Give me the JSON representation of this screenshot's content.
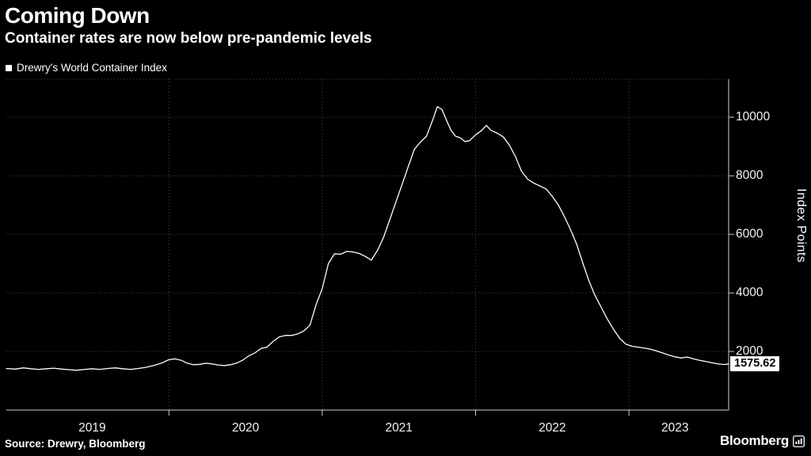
{
  "header": {
    "title": "Coming Down",
    "subtitle": "Container rates are now below pre-pandemic levels"
  },
  "legend": {
    "label": "Drewry's World Container Index"
  },
  "footer": {
    "source": "Source: Drewry, Bloomberg",
    "brand": "Bloomberg"
  },
  "colors": {
    "background": "#000000",
    "line": "#ffffff",
    "grid": "#474747",
    "axis": "#cfcfcf",
    "text": "#ffffff",
    "flag_bg": "#ffffff",
    "flag_text": "#000000"
  },
  "chart_data": {
    "type": "line",
    "title": "Coming Down",
    "subtitle": "Container rates are now below pre-pandemic levels",
    "series_name": "Drewry's World Container Index",
    "xlabel": "",
    "ylabel": "Index Points",
    "xlim": [
      2018.94,
      2023.65
    ],
    "ylim": [
      0,
      11300
    ],
    "yticks": [
      2000,
      4000,
      6000,
      8000,
      10000
    ],
    "x_gridlines": [
      2020,
      2021,
      2022,
      2023
    ],
    "year_labels": [
      {
        "label": "2019",
        "x": 2019.5
      },
      {
        "label": "2020",
        "x": 2020.5
      },
      {
        "label": "2021",
        "x": 2021.5
      },
      {
        "label": "2022",
        "x": 2022.5
      },
      {
        "label": "2023",
        "x": 2023.3
      }
    ],
    "legend_position": "top-left",
    "grid": "dotted",
    "last_value_label": "1575.62",
    "x": [
      2018.94,
      2019.0,
      2019.05,
      2019.1,
      2019.15,
      2019.2,
      2019.25,
      2019.3,
      2019.35,
      2019.4,
      2019.45,
      2019.5,
      2019.55,
      2019.6,
      2019.65,
      2019.7,
      2019.75,
      2019.8,
      2019.85,
      2019.9,
      2019.95,
      2020.0,
      2020.04,
      2020.08,
      2020.12,
      2020.16,
      2020.2,
      2020.24,
      2020.28,
      2020.32,
      2020.36,
      2020.4,
      2020.44,
      2020.48,
      2020.52,
      2020.56,
      2020.6,
      2020.64,
      2020.68,
      2020.72,
      2020.76,
      2020.8,
      2020.84,
      2020.88,
      2020.92,
      2020.96,
      2021.0,
      2021.04,
      2021.08,
      2021.12,
      2021.16,
      2021.2,
      2021.24,
      2021.28,
      2021.32,
      2021.36,
      2021.4,
      2021.44,
      2021.48,
      2021.52,
      2021.56,
      2021.6,
      2021.64,
      2021.68,
      2021.72,
      2021.75,
      2021.78,
      2021.81,
      2021.84,
      2021.87,
      2021.9,
      2021.93,
      2021.96,
      2022.0,
      2022.04,
      2022.07,
      2022.1,
      2022.14,
      2022.18,
      2022.22,
      2022.26,
      2022.3,
      2022.34,
      2022.38,
      2022.42,
      2022.46,
      2022.5,
      2022.54,
      2022.58,
      2022.62,
      2022.66,
      2022.7,
      2022.74,
      2022.78,
      2022.82,
      2022.86,
      2022.9,
      2022.94,
      2022.98,
      2023.02,
      2023.06,
      2023.1,
      2023.14,
      2023.18,
      2023.22,
      2023.26,
      2023.3,
      2023.34,
      2023.38,
      2023.42,
      2023.46,
      2023.5,
      2023.54,
      2023.58,
      2023.62,
      2023.65
    ],
    "values": [
      1420,
      1400,
      1440,
      1410,
      1390,
      1410,
      1430,
      1400,
      1380,
      1360,
      1390,
      1410,
      1390,
      1420,
      1440,
      1410,
      1390,
      1420,
      1460,
      1520,
      1600,
      1720,
      1750,
      1700,
      1600,
      1550,
      1560,
      1600,
      1580,
      1540,
      1520,
      1550,
      1600,
      1700,
      1850,
      1950,
      2100,
      2150,
      2350,
      2500,
      2550,
      2550,
      2600,
      2700,
      2900,
      3600,
      4150,
      5000,
      5340,
      5320,
      5420,
      5400,
      5350,
      5250,
      5120,
      5450,
      5900,
      6500,
      7100,
      7700,
      8300,
      8900,
      9150,
      9350,
      9900,
      10360,
      10270,
      9900,
      9550,
      9350,
      9300,
      9170,
      9200,
      9400,
      9550,
      9720,
      9550,
      9460,
      9330,
      9050,
      8650,
      8150,
      7880,
      7750,
      7650,
      7550,
      7300,
      7000,
      6600,
      6150,
      5650,
      5000,
      4400,
      3900,
      3500,
      3100,
      2750,
      2450,
      2250,
      2180,
      2150,
      2120,
      2080,
      2020,
      1950,
      1880,
      1820,
      1780,
      1810,
      1750,
      1700,
      1660,
      1620,
      1580,
      1555,
      1575.62
    ]
  }
}
